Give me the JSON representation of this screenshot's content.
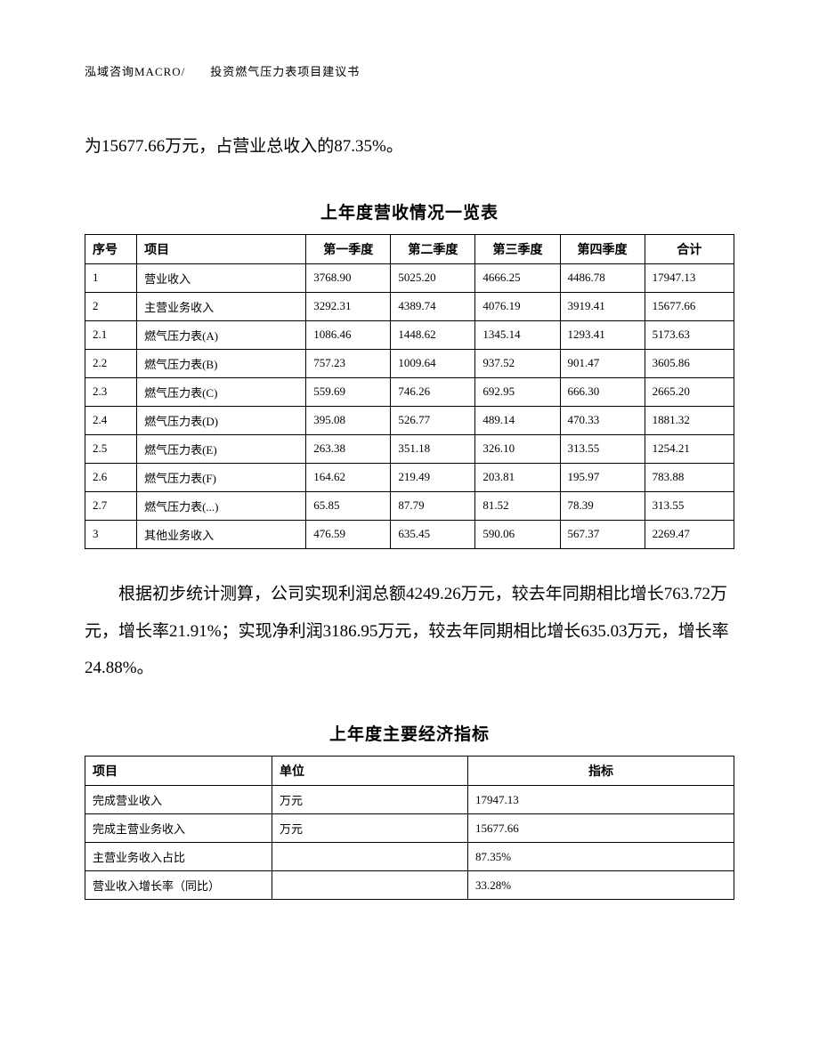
{
  "header": "泓域咨询MACRO/　　投资燃气压力表项目建议书",
  "intro": "为15677.66万元，占营业总收入的87.35%。",
  "table1": {
    "title": "上年度营收情况一览表",
    "columns": [
      "序号",
      "项目",
      "第一季度",
      "第二季度",
      "第三季度",
      "第四季度",
      "合计"
    ],
    "rows": [
      [
        "1",
        "营业收入",
        "3768.90",
        "5025.20",
        "4666.25",
        "4486.78",
        "17947.13"
      ],
      [
        "2",
        "主营业务收入",
        "3292.31",
        "4389.74",
        "4076.19",
        "3919.41",
        "15677.66"
      ],
      [
        "2.1",
        "燃气压力表(A)",
        "1086.46",
        "1448.62",
        "1345.14",
        "1293.41",
        "5173.63"
      ],
      [
        "2.2",
        "燃气压力表(B)",
        "757.23",
        "1009.64",
        "937.52",
        "901.47",
        "3605.86"
      ],
      [
        "2.3",
        "燃气压力表(C)",
        "559.69",
        "746.26",
        "692.95",
        "666.30",
        "2665.20"
      ],
      [
        "2.4",
        "燃气压力表(D)",
        "395.08",
        "526.77",
        "489.14",
        "470.33",
        "1881.32"
      ],
      [
        "2.5",
        "燃气压力表(E)",
        "263.38",
        "351.18",
        "326.10",
        "313.55",
        "1254.21"
      ],
      [
        "2.6",
        "燃气压力表(F)",
        "164.62",
        "219.49",
        "203.81",
        "195.97",
        "783.88"
      ],
      [
        "2.7",
        "燃气压力表(...)",
        "65.85",
        "87.79",
        "81.52",
        "78.39",
        "313.55"
      ],
      [
        "3",
        "其他业务收入",
        "476.59",
        "635.45",
        "590.06",
        "567.37",
        "2269.47"
      ]
    ]
  },
  "body_para": "根据初步统计测算，公司实现利润总额4249.26万元，较去年同期相比增长763.72万元，增长率21.91%；实现净利润3186.95万元，较去年同期相比增长635.03万元，增长率24.88%。",
  "table2": {
    "title": "上年度主要经济指标",
    "columns": [
      "项目",
      "单位",
      "指标"
    ],
    "rows": [
      [
        "完成营业收入",
        "万元",
        "17947.13"
      ],
      [
        "完成主营业务收入",
        "万元",
        "15677.66"
      ],
      [
        "主营业务收入占比",
        "",
        "87.35%"
      ],
      [
        "营业收入增长率（同比）",
        "",
        "33.28%"
      ]
    ]
  }
}
